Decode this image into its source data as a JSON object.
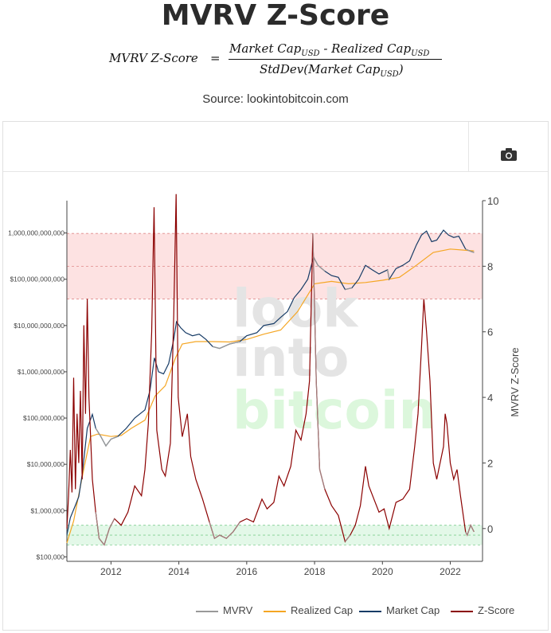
{
  "header": {
    "title": "MVRV Z-Score",
    "formula_lhs": "MVRV Z-Score",
    "formula_eq": "=",
    "formula_num_a": "Market Cap",
    "formula_num_sep": " - ",
    "formula_num_b": "Realized Cap",
    "formula_den_a": "StdDev(Market Cap",
    "formula_den_close": ")",
    "formula_sub": "USD",
    "source": "Source: lookintobitcoin.com"
  },
  "toolbar": {
    "camera_icon": "camera-icon"
  },
  "watermark": {
    "line1": "look",
    "line2": "into",
    "line3": "bitcoin"
  },
  "colors": {
    "mvrv": "#999999",
    "realized_cap": "#f5a623",
    "market_cap": "#163b66",
    "z_score": "#8b0000",
    "top_band": "#fde2e2",
    "bottom_band": "#e3f8e8",
    "watermark_gray": "#e4e4e4",
    "watermark_green": "#dcf7dc"
  },
  "chart_data": {
    "type": "line",
    "y_left": {
      "scale": "log",
      "range": [
        80000,
        5000000000000
      ],
      "ticks": [
        100000,
        1000000,
        10000000,
        100000000,
        1000000000,
        10000000000,
        100000000000,
        1000000000000
      ],
      "tick_labels": [
        "$100,000",
        "$1,000,000",
        "$10,000,000",
        "$100,000,000",
        "$1,000,000,000",
        "$10,000,000,000",
        "$100,000,000,000",
        "1,000,000,000,000"
      ]
    },
    "y_right": {
      "label": "MVRV Z-Score",
      "range": [
        -1,
        10
      ],
      "ticks": [
        0,
        2,
        4,
        6,
        8,
        10
      ],
      "tick_labels": [
        "0",
        "2",
        "4",
        "6",
        "8",
        "10"
      ]
    },
    "x": {
      "range": [
        2010.7,
        2022.95
      ],
      "ticks": [
        2012,
        2014,
        2016,
        2018,
        2020,
        2022
      ],
      "tick_labels": [
        "2012",
        "2014",
        "2016",
        "2018",
        "2020",
        "2022"
      ]
    },
    "bands": [
      {
        "name": "top",
        "z_from": 7,
        "z_to": 9,
        "mid": 8
      },
      {
        "name": "bottom",
        "z_from": -0.5,
        "z_to": 0.1,
        "mid": -0.2
      }
    ],
    "legend": [
      "MVRV",
      "Realized Cap",
      "Market Cap",
      "Z-Score"
    ],
    "market_cap": [
      [
        2010.7,
        300000
      ],
      [
        2010.8,
        700000
      ],
      [
        2010.95,
        1300000
      ],
      [
        2011.05,
        2000000
      ],
      [
        2011.15,
        6000000
      ],
      [
        2011.3,
        60000000
      ],
      [
        2011.45,
        120000000
      ],
      [
        2011.55,
        60000000
      ],
      [
        2011.7,
        40000000
      ],
      [
        2011.85,
        25000000
      ],
      [
        2012.0,
        35000000
      ],
      [
        2012.2,
        40000000
      ],
      [
        2012.45,
        60000000
      ],
      [
        2012.7,
        100000000
      ],
      [
        2013.0,
        150000000
      ],
      [
        2013.15,
        400000000
      ],
      [
        2013.28,
        2000000000
      ],
      [
        2013.4,
        1000000000
      ],
      [
        2013.55,
        900000000
      ],
      [
        2013.7,
        1500000000
      ],
      [
        2013.85,
        5000000000
      ],
      [
        2013.93,
        12000000000
      ],
      [
        2014.05,
        9000000000
      ],
      [
        2014.2,
        7000000000
      ],
      [
        2014.4,
        6000000000
      ],
      [
        2014.6,
        6500000000
      ],
      [
        2014.8,
        5000000000
      ],
      [
        2015.0,
        3500000000
      ],
      [
        2015.2,
        3200000000
      ],
      [
        2015.5,
        4000000000
      ],
      [
        2015.8,
        4500000000
      ],
      [
        2016.0,
        6000000000
      ],
      [
        2016.3,
        7000000000
      ],
      [
        2016.5,
        10000000000
      ],
      [
        2016.8,
        11000000000
      ],
      [
        2017.0,
        15000000000
      ],
      [
        2017.2,
        20000000000
      ],
      [
        2017.4,
        40000000000
      ],
      [
        2017.6,
        60000000000
      ],
      [
        2017.8,
        100000000000
      ],
      [
        2017.97,
        300000000000
      ],
      [
        2018.1,
        200000000000
      ],
      [
        2018.3,
        150000000000
      ],
      [
        2018.5,
        120000000000
      ],
      [
        2018.7,
        110000000000
      ],
      [
        2018.9,
        60000000000
      ],
      [
        2019.1,
        65000000000
      ],
      [
        2019.3,
        100000000000
      ],
      [
        2019.5,
        200000000000
      ],
      [
        2019.7,
        160000000000
      ],
      [
        2019.9,
        130000000000
      ],
      [
        2020.15,
        160000000000
      ],
      [
        2020.2,
        100000000000
      ],
      [
        2020.4,
        170000000000
      ],
      [
        2020.6,
        200000000000
      ],
      [
        2020.8,
        250000000000
      ],
      [
        2021.0,
        550000000000
      ],
      [
        2021.15,
        900000000000
      ],
      [
        2021.3,
        1100000000000
      ],
      [
        2021.45,
        650000000000
      ],
      [
        2021.6,
        700000000000
      ],
      [
        2021.8,
        1150000000000
      ],
      [
        2021.95,
        900000000000
      ],
      [
        2022.1,
        800000000000
      ],
      [
        2022.25,
        850000000000
      ],
      [
        2022.45,
        450000000000
      ],
      [
        2022.6,
        400000000000
      ],
      [
        2022.7,
        380000000000
      ]
    ],
    "realized_cap": [
      [
        2010.7,
        200000
      ],
      [
        2010.9,
        600000
      ],
      [
        2011.2,
        8000000
      ],
      [
        2011.4,
        40000000
      ],
      [
        2011.6,
        45000000
      ],
      [
        2012.0,
        40000000
      ],
      [
        2012.3,
        42000000
      ],
      [
        2012.6,
        60000000
      ],
      [
        2013.0,
        90000000
      ],
      [
        2013.3,
        300000000
      ],
      [
        2013.6,
        500000000
      ],
      [
        2013.9,
        2000000000
      ],
      [
        2014.1,
        4000000000
      ],
      [
        2014.5,
        4500000000
      ],
      [
        2015.0,
        4500000000
      ],
      [
        2015.5,
        4400000000
      ],
      [
        2016.0,
        5000000000
      ],
      [
        2016.5,
        6500000000
      ],
      [
        2017.0,
        8000000000
      ],
      [
        2017.5,
        20000000000
      ],
      [
        2018.0,
        80000000000
      ],
      [
        2018.5,
        90000000000
      ],
      [
        2019.0,
        80000000000
      ],
      [
        2019.5,
        85000000000
      ],
      [
        2020.0,
        95000000000
      ],
      [
        2020.5,
        110000000000
      ],
      [
        2021.0,
        200000000000
      ],
      [
        2021.5,
        380000000000
      ],
      [
        2022.0,
        450000000000
      ],
      [
        2022.5,
        420000000000
      ],
      [
        2022.7,
        410000000000
      ]
    ],
    "z_score": [
      [
        2010.7,
        0.0
      ],
      [
        2010.75,
        1.0
      ],
      [
        2010.8,
        2.4
      ],
      [
        2010.85,
        1.1
      ],
      [
        2010.9,
        4.6
      ],
      [
        2010.95,
        1.2
      ],
      [
        2011.0,
        3.5
      ],
      [
        2011.05,
        2.0
      ],
      [
        2011.1,
        4.2
      ],
      [
        2011.15,
        1.5
      ],
      [
        2011.2,
        6.2
      ],
      [
        2011.25,
        3.5
      ],
      [
        2011.3,
        7.0
      ],
      [
        2011.35,
        4.0
      ],
      [
        2011.45,
        1.5
      ],
      [
        2011.55,
        0.5
      ],
      [
        2011.65,
        -0.3
      ],
      [
        2011.8,
        -0.5
      ],
      [
        2011.95,
        0.0
      ],
      [
        2012.1,
        0.3
      ],
      [
        2012.3,
        0.1
      ],
      [
        2012.5,
        0.5
      ],
      [
        2012.7,
        1.3
      ],
      [
        2012.9,
        1.0
      ],
      [
        2013.0,
        1.8
      ],
      [
        2013.1,
        3.2
      ],
      [
        2013.2,
        6.0
      ],
      [
        2013.27,
        9.8
      ],
      [
        2013.35,
        3.0
      ],
      [
        2013.5,
        1.8
      ],
      [
        2013.6,
        1.6
      ],
      [
        2013.75,
        2.6
      ],
      [
        2013.85,
        6.5
      ],
      [
        2013.92,
        10.2
      ],
      [
        2013.98,
        4.0
      ],
      [
        2014.1,
        2.8
      ],
      [
        2014.25,
        3.5
      ],
      [
        2014.35,
        2.2
      ],
      [
        2014.5,
        1.5
      ],
      [
        2014.7,
        0.9
      ],
      [
        2014.9,
        0.2
      ],
      [
        2015.05,
        -0.3
      ],
      [
        2015.2,
        -0.2
      ],
      [
        2015.4,
        -0.3
      ],
      [
        2015.6,
        -0.1
      ],
      [
        2015.8,
        0.2
      ],
      [
        2016.0,
        0.3
      ],
      [
        2016.2,
        0.2
      ],
      [
        2016.45,
        0.9
      ],
      [
        2016.6,
        0.6
      ],
      [
        2016.8,
        0.8
      ],
      [
        2016.95,
        1.6
      ],
      [
        2017.1,
        1.3
      ],
      [
        2017.3,
        1.9
      ],
      [
        2017.45,
        3.0
      ],
      [
        2017.6,
        2.7
      ],
      [
        2017.75,
        3.5
      ],
      [
        2017.85,
        4.5
      ],
      [
        2017.95,
        9.0
      ],
      [
        2018.05,
        4.5
      ],
      [
        2018.15,
        1.8
      ],
      [
        2018.3,
        1.2
      ],
      [
        2018.5,
        0.7
      ],
      [
        2018.7,
        0.4
      ],
      [
        2018.9,
        -0.4
      ],
      [
        2019.05,
        -0.2
      ],
      [
        2019.2,
        0.1
      ],
      [
        2019.35,
        0.7
      ],
      [
        2019.5,
        1.9
      ],
      [
        2019.6,
        1.3
      ],
      [
        2019.75,
        0.9
      ],
      [
        2019.9,
        0.5
      ],
      [
        2020.05,
        0.6
      ],
      [
        2020.2,
        0.0
      ],
      [
        2020.4,
        0.8
      ],
      [
        2020.6,
        0.9
      ],
      [
        2020.8,
        1.2
      ],
      [
        2020.95,
        2.5
      ],
      [
        2021.05,
        3.5
      ],
      [
        2021.15,
        5.5
      ],
      [
        2021.22,
        7.0
      ],
      [
        2021.3,
        6.0
      ],
      [
        2021.4,
        4.5
      ],
      [
        2021.5,
        2.0
      ],
      [
        2021.6,
        1.5
      ],
      [
        2021.7,
        2.0
      ],
      [
        2021.8,
        2.5
      ],
      [
        2021.85,
        3.5
      ],
      [
        2021.9,
        3.2
      ],
      [
        2022.0,
        2.0
      ],
      [
        2022.1,
        1.5
      ],
      [
        2022.2,
        1.8
      ],
      [
        2022.3,
        1.0
      ],
      [
        2022.45,
        -0.1
      ],
      [
        2022.5,
        -0.2
      ],
      [
        2022.6,
        0.1
      ],
      [
        2022.7,
        -0.1
      ]
    ],
    "mvrv_visible_spans": [
      [
        2011.55,
        2012.2
      ],
      [
        2014.85,
        2015.95
      ],
      [
        2018.85,
        2019.15
      ],
      [
        2020.15,
        2020.25
      ],
      [
        2022.42,
        2022.7
      ],
      [
        2017.9,
        2018.3
      ]
    ]
  }
}
